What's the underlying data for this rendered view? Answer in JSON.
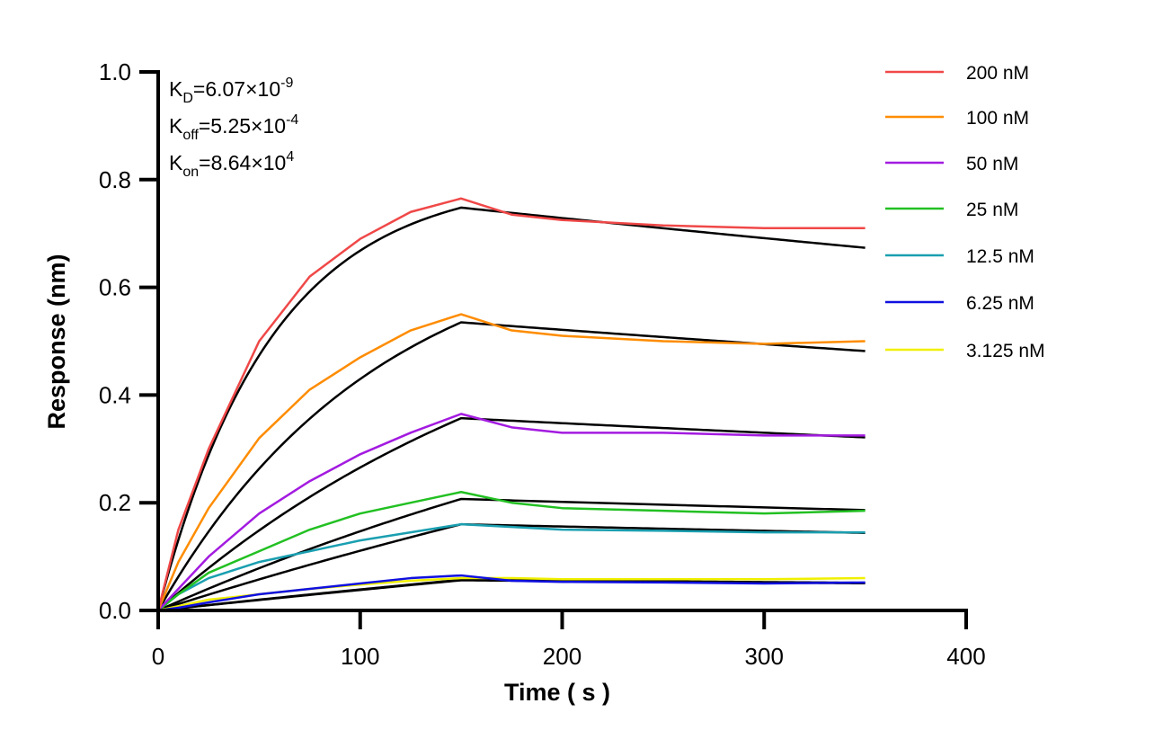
{
  "chart_data": {
    "type": "line",
    "xlabel": "Time ( s )",
    "ylabel": "Response (nm)",
    "xlim": [
      0,
      400
    ],
    "ylim": [
      0,
      1.0
    ],
    "xticks": [
      "0",
      "100",
      "200",
      "300",
      "400"
    ],
    "yticks": [
      "0.0",
      "0.2",
      "0.4",
      "0.6",
      "0.8",
      "1.0"
    ],
    "grid": false,
    "legend_position": "top-right",
    "annotations": {
      "kd": {
        "base": "K",
        "sub": "D",
        "value": "=6.07×10",
        "exp": "-9"
      },
      "koff": {
        "base": "K",
        "sub": "off",
        "value": "=5.25×10",
        "exp": "-4"
      },
      "kon": {
        "base": "K",
        "sub": "on",
        "value": "=8.64×10",
        "exp": "4"
      }
    },
    "kinetics": {
      "kon": 86400,
      "koff": 0.000525,
      "association_end": 150,
      "dissociation_end": 350
    },
    "fit_color": "#000000",
    "x": [
      0,
      10,
      25,
      50,
      75,
      100,
      125,
      150,
      175,
      200,
      250,
      300,
      350
    ],
    "series": [
      {
        "name": "200 nM",
        "conc_nM": 200,
        "color": "#f04848",
        "fit_peak": 0.748,
        "values": [
          0,
          0.15,
          0.3,
          0.5,
          0.62,
          0.69,
          0.74,
          0.765,
          0.735,
          0.725,
          0.715,
          0.71,
          0.71
        ]
      },
      {
        "name": "100 nM",
        "conc_nM": 100,
        "color": "#ff8c00",
        "fit_peak": 0.535,
        "values": [
          0,
          0.09,
          0.19,
          0.32,
          0.41,
          0.47,
          0.52,
          0.55,
          0.52,
          0.51,
          0.5,
          0.495,
          0.5
        ]
      },
      {
        "name": "50 nM",
        "conc_nM": 50,
        "color": "#a31be0",
        "fit_peak": 0.357,
        "values": [
          0,
          0.04,
          0.1,
          0.18,
          0.24,
          0.29,
          0.33,
          0.365,
          0.34,
          0.33,
          0.33,
          0.325,
          0.325
        ]
      },
      {
        "name": "25 nM",
        "conc_nM": 25,
        "color": "#22c022",
        "fit_peak": 0.207,
        "values": [
          0,
          0.03,
          0.07,
          0.11,
          0.15,
          0.18,
          0.2,
          0.22,
          0.2,
          0.19,
          0.185,
          0.18,
          0.185
        ]
      },
      {
        "name": "12.5 nM",
        "conc_nM": 12.5,
        "color": "#1a9fb0",
        "fit_peak": 0.16,
        "values": [
          0,
          0.03,
          0.06,
          0.09,
          0.11,
          0.13,
          0.145,
          0.16,
          0.155,
          0.15,
          0.148,
          0.145,
          0.145
        ]
      },
      {
        "name": "6.25 nM",
        "conc_nM": 6.25,
        "color": "#1010e0",
        "fit_peak": 0.057,
        "values": [
          0,
          0.005,
          0.015,
          0.03,
          0.04,
          0.05,
          0.06,
          0.065,
          0.055,
          0.053,
          0.052,
          0.05,
          0.052
        ]
      },
      {
        "name": "3.125 nM",
        "conc_nM": 3.125,
        "color": "#f0f000",
        "fit_peak": 0.056,
        "values": [
          0,
          0.008,
          0.02,
          0.03,
          0.04,
          0.048,
          0.055,
          0.06,
          0.06,
          0.058,
          0.058,
          0.058,
          0.06
        ]
      }
    ]
  }
}
